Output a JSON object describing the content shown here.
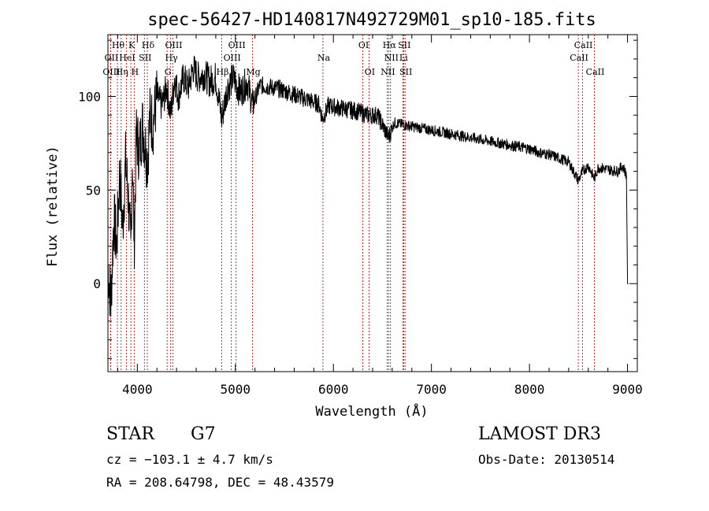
{
  "chart_data": {
    "type": "line",
    "title": "spec-56427-HD140817N492729M01_sp10-185.fits",
    "xlabel": "Wavelength (Å)",
    "ylabel": "Flux (relative)",
    "xlim": [
      3700,
      9100
    ],
    "ylim": [
      -47,
      133
    ],
    "xticks": [
      4000,
      5000,
      6000,
      7000,
      8000,
      9000
    ],
    "yticks": [
      0,
      50,
      100
    ],
    "series": [
      {
        "name": "flux",
        "x": [
          3700,
          3730,
          3760,
          3790,
          3820,
          3850,
          3880,
          3910,
          3934,
          3950,
          3968,
          3990,
          4020,
          4050,
          4080,
          4102,
          4130,
          4160,
          4200,
          4250,
          4300,
          4340,
          4380,
          4420,
          4470,
          4520,
          4570,
          4620,
          4680,
          4740,
          4800,
          4861,
          4920,
          4980,
          5050,
          5120,
          5175,
          5250,
          5350,
          5450,
          5550,
          5650,
          5750,
          5850,
          5890,
          5950,
          6050,
          6150,
          6250,
          6350,
          6450,
          6563,
          6620,
          6700,
          6800,
          6900,
          7000,
          7100,
          7200,
          7300,
          7400,
          7500,
          7600,
          7700,
          7800,
          7900,
          8000,
          8100,
          8200,
          8300,
          8400,
          8498,
          8542,
          8600,
          8662,
          8700,
          8800,
          8900,
          8950,
          8990,
          9000
        ],
        "y": [
          10,
          -10,
          35,
          20,
          60,
          30,
          65,
          45,
          15,
          70,
          20,
          80,
          70,
          85,
          75,
          65,
          90,
          85,
          100,
          95,
          105,
          90,
          110,
          100,
          110,
          105,
          115,
          110,
          112,
          108,
          110,
          88,
          105,
          110,
          102,
          108,
          95,
          106,
          105,
          104,
          102,
          100,
          98,
          96,
          88,
          95,
          94,
          93,
          92,
          90,
          90,
          78,
          86,
          85,
          84,
          83,
          82,
          81,
          80,
          79,
          78,
          77,
          76,
          75,
          74,
          73,
          72,
          70,
          69,
          67,
          65,
          55,
          60,
          63,
          56,
          62,
          61,
          60,
          63,
          58,
          0
        ]
      }
    ],
    "spectral_lines": [
      {
        "label": "Hθ",
        "wl": 3797,
        "row": 1
      },
      {
        "label": "OII",
        "wl": 3727,
        "row": 2
      },
      {
        "label": "OIII",
        "wl": 3727,
        "row": 3
      },
      {
        "label": "Hη",
        "wl": 3835,
        "row": 3
      },
      {
        "label": "HeI",
        "wl": 3889,
        "row": 2
      },
      {
        "label": "K",
        "wl": 3934,
        "row": 1
      },
      {
        "label": "SII",
        "wl": 4072,
        "row": 2
      },
      {
        "label": "H",
        "wl": 3968,
        "row": 3
      },
      {
        "label": "Hδ",
        "wl": 4102,
        "row": 1
      },
      {
        "label": "OIII",
        "wl": 4363,
        "row": 1
      },
      {
        "label": "Hγ",
        "wl": 4340,
        "row": 2
      },
      {
        "label": "G",
        "wl": 4304,
        "row": 3
      },
      {
        "label": "Hβ",
        "wl": 4861,
        "row": 3
      },
      {
        "label": "OIII",
        "wl": 5007,
        "row": 1
      },
      {
        "label": "OIII",
        "wl": 4959,
        "row": 2
      },
      {
        "label": "Mg",
        "wl": 5175,
        "row": 3
      },
      {
        "label": "Na",
        "wl": 5893,
        "row": 2
      },
      {
        "label": "OI",
        "wl": 6300,
        "row": 1
      },
      {
        "label": "OI",
        "wl": 6363,
        "row": 3
      },
      {
        "label": "Hα",
        "wl": 6563,
        "row": 1
      },
      {
        "label": "NII",
        "wl": 6583,
        "row": 2
      },
      {
        "label": "NII",
        "wl": 6548,
        "row": 3
      },
      {
        "label": "SII",
        "wl": 6716,
        "row": 1
      },
      {
        "label": "Li",
        "wl": 6708,
        "row": 2
      },
      {
        "label": "SII",
        "wl": 6731,
        "row": 3
      },
      {
        "label": "CaII",
        "wl": 8542,
        "row": 1
      },
      {
        "label": "CaII",
        "wl": 8498,
        "row": 2
      },
      {
        "label": "CaII",
        "wl": 8662,
        "row": 3
      }
    ]
  },
  "info": {
    "object_class": "STAR",
    "subclass": "G7",
    "survey": "LAMOST DR3",
    "redshift": "cz = −103.1 ± 4.7 km/s",
    "obs_date": "Obs-Date: 20130514",
    "coords": "RA = 208.64798, DEC =  48.43579"
  },
  "colors": {
    "line": "#000000",
    "marker": "#b00000",
    "background": "#ffffff"
  }
}
